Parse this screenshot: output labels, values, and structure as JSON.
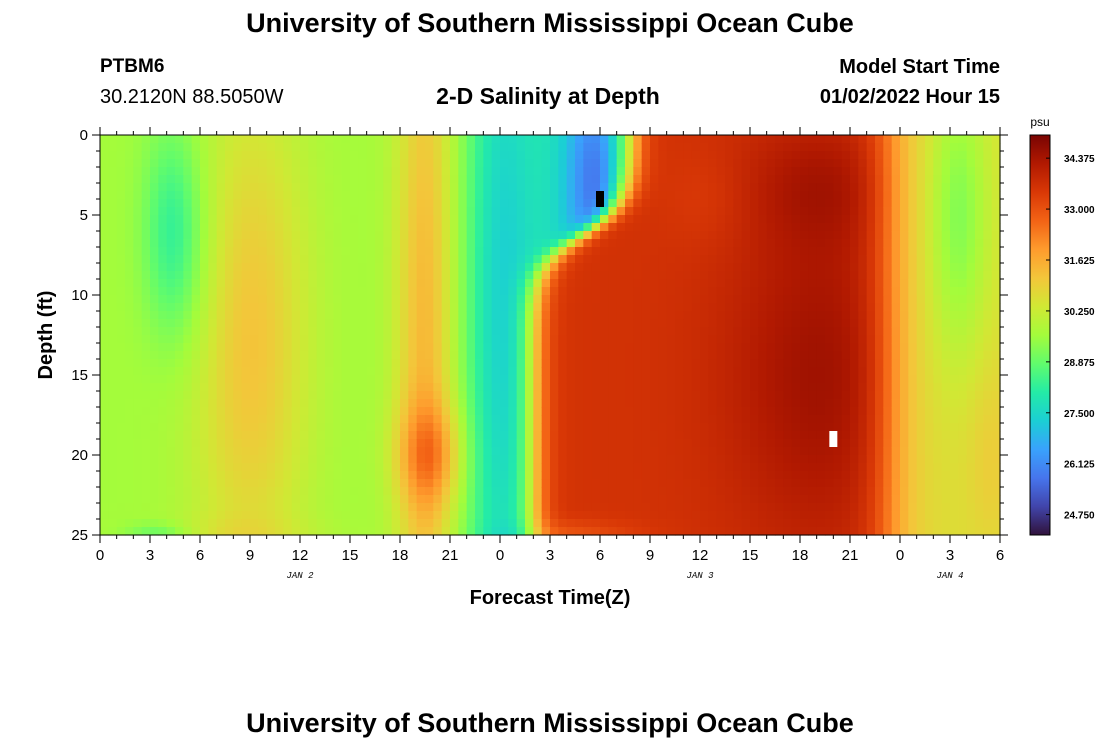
{
  "header": {
    "title": "University of Southern Mississippi Ocean Cube",
    "station": "PTBM6",
    "coordinates": "30.2120N  88.5050W",
    "subtitle": "2-D Salinity at Depth",
    "model_start_label": "Model Start Time",
    "model_start_value": "01/02/2022 Hour 15"
  },
  "footer": {
    "title": "University of Southern Mississippi Ocean Cube"
  },
  "chart_data": {
    "type": "heatmap",
    "title": "2-D Salinity at Depth",
    "xlabel": "Forecast Time(Z)",
    "ylabel": "Depth (ft)",
    "x_unit": "forecast hour",
    "xlim": [
      0,
      54
    ],
    "ylim": [
      0,
      25
    ],
    "y_reversed": true,
    "x_ticks": [
      0,
      3,
      6,
      9,
      12,
      15,
      18,
      21,
      24,
      27,
      30,
      33,
      36,
      39,
      42,
      45,
      48,
      51,
      54
    ],
    "x_tick_labels": [
      "0",
      "3",
      "6",
      "9",
      "12",
      "15",
      "18",
      "21",
      "0",
      "3",
      "6",
      "9",
      "12",
      "15",
      "18",
      "21",
      "0",
      "3",
      "6"
    ],
    "y_ticks": [
      0,
      5,
      10,
      15,
      20,
      25
    ],
    "y_tick_labels": [
      "0",
      "5",
      "10",
      "15",
      "20",
      "25"
    ],
    "date_labels": [
      {
        "text": "JAN 2",
        "x": 12
      },
      {
        "text": "JAN 3",
        "x": 36
      },
      {
        "text": "JAN 4",
        "x": 51
      }
    ],
    "colorbar": {
      "unit": "psu",
      "min": 24.2,
      "max": 35.0,
      "ticks": [
        34.375,
        33.0,
        31.625,
        30.25,
        28.875,
        27.5,
        26.125,
        24.75
      ],
      "tick_labels": [
        "34.375",
        "33.000",
        "31.625",
        "30.250",
        "28.875",
        "27.500",
        "26.125",
        "24.750"
      ],
      "colors": [
        "#30123b",
        "#4145ab",
        "#4675ed",
        "#39a2fc",
        "#1bcfd4",
        "#24eca6",
        "#61fc6c",
        "#a4fc3b",
        "#d1e834",
        "#f3c63a",
        "#fe9b2d",
        "#f36315",
        "#d93806",
        "#b11901",
        "#7a0402"
      ]
    },
    "markers": [
      {
        "x": 30,
        "y": 4,
        "color": "#000000"
      },
      {
        "x": 44,
        "y": 19,
        "color": "#ffffff"
      }
    ],
    "grid": false,
    "legend": "right colorbar"
  }
}
